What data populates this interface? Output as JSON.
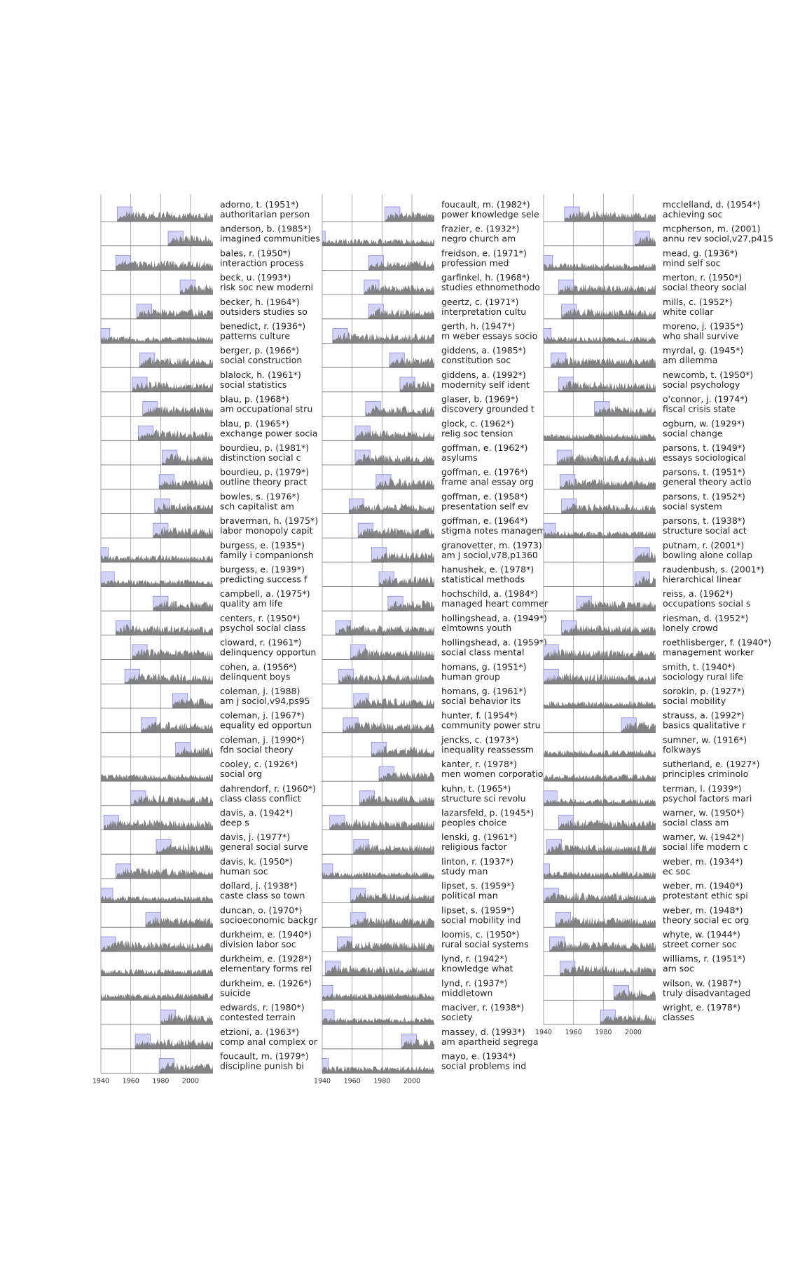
{
  "chart_data": {
    "type": "area",
    "description_of_marks": "small-multiple citation time series per cited work; shaded box marks first decade after publication",
    "xlim": [
      1940,
      2015
    ],
    "xticks": [
      1940,
      1960,
      1980,
      2000
    ],
    "colors": {
      "area": "#7a7a7a",
      "highlight_fill": "#c8c8f5",
      "highlight_stroke": "#8c8cdc",
      "gridline": "#9a9a9a",
      "baseline": "#666666"
    },
    "columns": [
      [
        {
          "author": "adorno, t. (1951*)",
          "title": "authoritarian person",
          "year": 1951
        },
        {
          "author": "anderson, b. (1985*)",
          "title": "imagined communities",
          "year": 1985
        },
        {
          "author": "bales, r. (1950*)",
          "title": "interaction process",
          "year": 1950
        },
        {
          "author": "beck, u. (1993*)",
          "title": "risk soc new moderni",
          "year": 1993
        },
        {
          "author": "becker, h. (1964*)",
          "title": "outsiders studies so",
          "year": 1964
        },
        {
          "author": "benedict, r. (1936*)",
          "title": "patterns culture",
          "year": 1936
        },
        {
          "author": "berger, p. (1966*)",
          "title": "social construction",
          "year": 1966
        },
        {
          "author": "blalock, h. (1961*)",
          "title": "social statistics",
          "year": 1961
        },
        {
          "author": "blau, p. (1968*)",
          "title": "am occupational stru",
          "year": 1968
        },
        {
          "author": "blau, p. (1965*)",
          "title": "exchange power socia",
          "year": 1965
        },
        {
          "author": "bourdieu, p. (1981*)",
          "title": "distinction social c",
          "year": 1981
        },
        {
          "author": "bourdieu, p. (1979*)",
          "title": "outline theory pract",
          "year": 1979
        },
        {
          "author": "bowles, s. (1976*)",
          "title": "sch capitalist am",
          "year": 1976
        },
        {
          "author": "braverman, h. (1975*)",
          "title": "labor monopoly capit",
          "year": 1975
        },
        {
          "author": "burgess, e. (1935*)",
          "title": "family i companionsh",
          "year": 1935
        },
        {
          "author": "burgess, e. (1939*)",
          "title": "predicting success f",
          "year": 1939
        },
        {
          "author": "campbell, a. (1975*)",
          "title": "quality am life",
          "year": 1975
        },
        {
          "author": "centers, r. (1950*)",
          "title": "psychol social class",
          "year": 1950
        },
        {
          "author": "cloward, r. (1961*)",
          "title": "delinquency opportun",
          "year": 1961
        },
        {
          "author": "cohen, a. (1956*)",
          "title": "delinquent boys",
          "year": 1956
        },
        {
          "author": "coleman, j. (1988)",
          "title": "am j sociol,v94,ps95",
          "year": 1988
        },
        {
          "author": "coleman, j. (1967*)",
          "title": "equality ed opportun",
          "year": 1967
        },
        {
          "author": "coleman, j. (1990*)",
          "title": "fdn social theory",
          "year": 1990
        },
        {
          "author": "cooley, c. (1926*)",
          "title": "social org",
          "year": 1926
        },
        {
          "author": "dahrendorf, r. (1960*)",
          "title": "class class conflict",
          "year": 1960
        },
        {
          "author": "davis, a. (1942*)",
          "title": "deep s",
          "year": 1942
        },
        {
          "author": "davis, j. (1977*)",
          "title": "general social surve",
          "year": 1977
        },
        {
          "author": "davis, k. (1950*)",
          "title": "human soc",
          "year": 1950
        },
        {
          "author": "dollard, j. (1938*)",
          "title": "caste class so town",
          "year": 1938
        },
        {
          "author": "duncan, o. (1970*)",
          "title": "socioeconomic backgr",
          "year": 1970
        },
        {
          "author": "durkheim, e. (1940*)",
          "title": "division labor soc",
          "year": 1940
        },
        {
          "author": "durkheim, e. (1928*)",
          "title": "elementary forms rel",
          "year": 1928
        },
        {
          "author": "durkheim, e. (1926*)",
          "title": "suicide",
          "year": 1926
        },
        {
          "author": "edwards, r. (1980*)",
          "title": "contested terrain",
          "year": 1980
        },
        {
          "author": "etzioni, a. (1963*)",
          "title": "comp anal complex or",
          "year": 1963
        },
        {
          "author": "foucault, m. (1979*)",
          "title": "discipline punish bi",
          "year": 1979
        }
      ],
      [
        {
          "author": "foucault, m. (1982*)",
          "title": "power knowledge sele",
          "year": 1982
        },
        {
          "author": "frazier, e. (1932*)",
          "title": "negro church am",
          "year": 1932
        },
        {
          "author": "freidson, e. (1971*)",
          "title": "profession med",
          "year": 1971
        },
        {
          "author": "garfinkel, h. (1968*)",
          "title": "studies ethnomethodo",
          "year": 1968
        },
        {
          "author": "geertz, c. (1971*)",
          "title": "interpretation cultu",
          "year": 1971
        },
        {
          "author": "gerth, h. (1947*)",
          "title": "m weber essays socio",
          "year": 1947
        },
        {
          "author": "giddens, a. (1985*)",
          "title": "constitution soc",
          "year": 1985
        },
        {
          "author": "giddens, a. (1992*)",
          "title": "modernity self ident",
          "year": 1992
        },
        {
          "author": "glaser, b. (1969*)",
          "title": "discovery grounded t",
          "year": 1969
        },
        {
          "author": "glock, c. (1962*)",
          "title": "relig soc tension",
          "year": 1962
        },
        {
          "author": "goffman, e. (1962*)",
          "title": "asylums",
          "year": 1962
        },
        {
          "author": "goffman, e. (1976*)",
          "title": "frame anal essay org",
          "year": 1976
        },
        {
          "author": "goffman, e. (1958*)",
          "title": "presentation self ev",
          "year": 1958
        },
        {
          "author": "goffman, e. (1964*)",
          "title": "stigma notes managem",
          "year": 1964
        },
        {
          "author": "granovetter, m. (1973)",
          "title": "am j sociol,v78,p1360",
          "year": 1973
        },
        {
          "author": "hanushek, e. (1978*)",
          "title": "statistical methods",
          "year": 1978
        },
        {
          "author": "hochschild, a. (1984*)",
          "title": "managed heart commer",
          "year": 1984
        },
        {
          "author": "hollingshead, a. (1949*)",
          "title": "elmtowns youth",
          "year": 1949
        },
        {
          "author": "hollingshead, a. (1959*)",
          "title": "social class mental",
          "year": 1959
        },
        {
          "author": "homans, g. (1951*)",
          "title": "human group",
          "year": 1951
        },
        {
          "author": "homans, g. (1961*)",
          "title": "social behavior its",
          "year": 1961
        },
        {
          "author": "hunter, f. (1954*)",
          "title": "community power stru",
          "year": 1954
        },
        {
          "author": "jencks, c. (1973*)",
          "title": "inequality reassessm",
          "year": 1973
        },
        {
          "author": "kanter, r. (1978*)",
          "title": "men women corporatio",
          "year": 1978
        },
        {
          "author": "kuhn, t. (1965*)",
          "title": "structure sci revolu",
          "year": 1965
        },
        {
          "author": "lazarsfeld, p. (1945*)",
          "title": "peoples choice",
          "year": 1945
        },
        {
          "author": "lenski, g. (1961*)",
          "title": "religious factor",
          "year": 1961
        },
        {
          "author": "linton, r. (1937*)",
          "title": "study man",
          "year": 1937
        },
        {
          "author": "lipset, s. (1959*)",
          "title": "political man",
          "year": 1959
        },
        {
          "author": "lipset, s. (1959*)",
          "title": "social mobility ind",
          "year": 1959
        },
        {
          "author": "loomis, c. (1950*)",
          "title": "rural social systems",
          "year": 1950
        },
        {
          "author": "lynd, r. (1942*)",
          "title": "knowledge what",
          "year": 1942
        },
        {
          "author": "lynd, r. (1937*)",
          "title": "middletown",
          "year": 1937
        },
        {
          "author": "maciver, r. (1938*)",
          "title": "society",
          "year": 1938
        },
        {
          "author": "massey, d. (1993*)",
          "title": "am apartheid segrega",
          "year": 1993
        },
        {
          "author": "mayo, e. (1934*)",
          "title": "social problems ind",
          "year": 1934
        }
      ],
      [
        {
          "author": "mcclelland, d. (1954*)",
          "title": "achieving soc",
          "year": 1954
        },
        {
          "author": "mcpherson, m. (2001)",
          "title": "annu rev sociol,v27,p415",
          "year": 2001
        },
        {
          "author": "mead, g. (1936*)",
          "title": "mind self soc",
          "year": 1936
        },
        {
          "author": "merton, r. (1950*)",
          "title": "social theory social",
          "year": 1950
        },
        {
          "author": "mills, c. (1952*)",
          "title": "white collar",
          "year": 1952
        },
        {
          "author": "moreno, j. (1935*)",
          "title": "who shall survive",
          "year": 1935
        },
        {
          "author": "myrdal, g. (1945*)",
          "title": "am dilemma",
          "year": 1945
        },
        {
          "author": "newcomb, t. (1950*)",
          "title": "social psychology",
          "year": 1950
        },
        {
          "author": "o'connor, j. (1974*)",
          "title": "fiscal crisis state",
          "year": 1974
        },
        {
          "author": "ogburn, w. (1929*)",
          "title": "social change",
          "year": 1929
        },
        {
          "author": "parsons, t. (1949*)",
          "title": "essays sociological",
          "year": 1949
        },
        {
          "author": "parsons, t. (1951*)",
          "title": "general theory actio",
          "year": 1951
        },
        {
          "author": "parsons, t. (1952*)",
          "title": "social system",
          "year": 1952
        },
        {
          "author": "parsons, t. (1938*)",
          "title": "structure social act",
          "year": 1938
        },
        {
          "author": "putnam, r. (2001*)",
          "title": "bowling alone collap",
          "year": 2001
        },
        {
          "author": "raudenbush, s. (2001*)",
          "title": "hierarchical linear",
          "year": 2001
        },
        {
          "author": "reiss, a. (1962*)",
          "title": "occupations social s",
          "year": 1962
        },
        {
          "author": "riesman, d. (1952*)",
          "title": "lonely crowd",
          "year": 1952
        },
        {
          "author": "roethlisberger, f. (1940*)",
          "title": "management worker",
          "year": 1940
        },
        {
          "author": "smith, t. (1940*)",
          "title": "sociology rural life",
          "year": 1940
        },
        {
          "author": "sorokin, p. (1927*)",
          "title": "social mobility",
          "year": 1927
        },
        {
          "author": "strauss, a. (1992*)",
          "title": "basics qualitative r",
          "year": 1992
        },
        {
          "author": "sumner, w. (1916*)",
          "title": "folkways",
          "year": 1916
        },
        {
          "author": "sutherland, e. (1927*)",
          "title": "principles criminolo",
          "year": 1927
        },
        {
          "author": "terman, l. (1939*)",
          "title": "psychol factors mari",
          "year": 1939
        },
        {
          "author": "warner, w. (1950*)",
          "title": "social class am",
          "year": 1950
        },
        {
          "author": "warner, w. (1942*)",
          "title": "social life modern c",
          "year": 1942
        },
        {
          "author": "weber, m. (1934*)",
          "title": "ec soc",
          "year": 1934
        },
        {
          "author": "weber, m. (1940*)",
          "title": "protestant ethic spi",
          "year": 1940
        },
        {
          "author": "weber, m. (1948*)",
          "title": "theory social ec org",
          "year": 1948
        },
        {
          "author": "whyte, w. (1944*)",
          "title": "street corner soc",
          "year": 1944
        },
        {
          "author": "williams, r. (1951*)",
          "title": "am soc",
          "year": 1951
        },
        {
          "author": "wilson, w. (1987*)",
          "title": "truly disadvantaged",
          "year": 1987
        },
        {
          "author": "wright, e. (1978*)",
          "title": "classes",
          "year": 1978
        }
      ]
    ]
  }
}
